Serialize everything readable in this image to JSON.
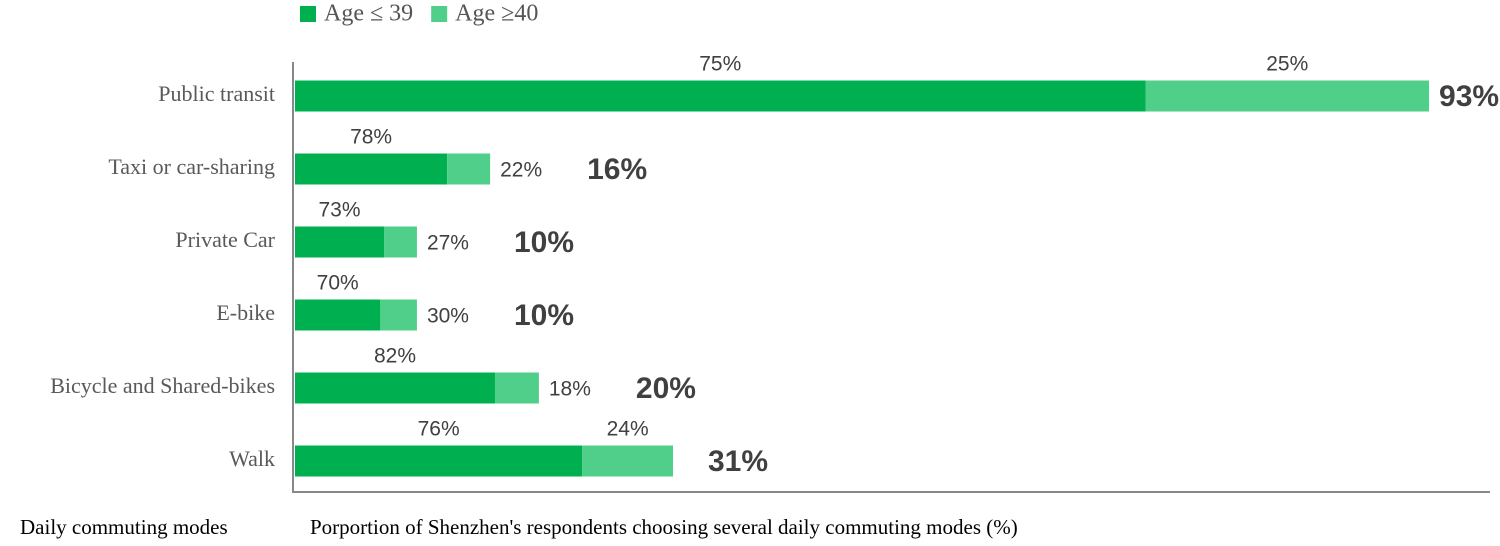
{
  "chart_data": {
    "type": "bar",
    "orientation": "horizontal",
    "x_axis_label": "Porportion of Shenzhen's respondents choosing several daily commuting modes (%)",
    "y_axis_label": "Daily commuting modes",
    "categories": [
      "Public transit",
      "Taxi or car-sharing",
      "Private Car",
      "E-bike",
      "Bicycle and Shared-bikes",
      "Walk"
    ],
    "series": [
      {
        "name": "Age ≤ 39",
        "color": "#00b050",
        "values": [
          75,
          78,
          73,
          70,
          82,
          76
        ],
        "value_labels": [
          "75%",
          "78%",
          "73%",
          "70%",
          "82%",
          "76%"
        ]
      },
      {
        "name": "Age ≥40",
        "color": "#50cf8a",
        "values": [
          25,
          22,
          27,
          30,
          18,
          24
        ],
        "value_labels": [
          "25%",
          "22%",
          "27%",
          "30%",
          "18%",
          "24%"
        ]
      }
    ],
    "totals": [
      93,
      16,
      10,
      10,
      20,
      31
    ],
    "total_labels": [
      "93%",
      "16%",
      "10%",
      "10%",
      "20%",
      "31%"
    ],
    "xlim": [
      0,
      98
    ],
    "legend": "top"
  }
}
